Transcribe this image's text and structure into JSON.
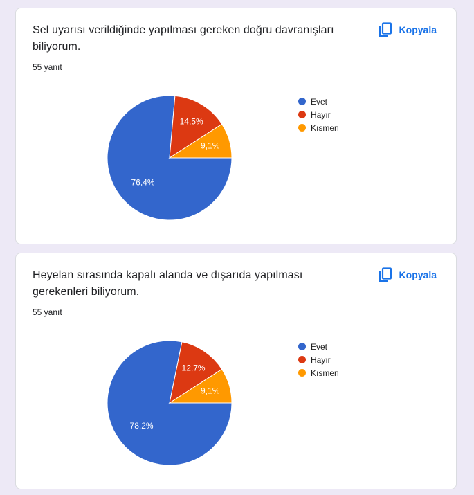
{
  "colors": {
    "background": "#ede9f6",
    "accent": "#1a73e8",
    "evet": "#3366cc",
    "hayir": "#dc3912",
    "kismen": "#ff9900"
  },
  "cards": [
    {
      "title": "Sel uyarısı verildiğinde yapılması gereken doğru davranışları biliyorum.",
      "copy_label": "Kopyala",
      "response_count": "55 yanıt",
      "legend": [
        "Evet",
        "Hayır",
        "Kısmen"
      ],
      "slice_labels": [
        "76,4%",
        "14,5%",
        "9,1%"
      ]
    },
    {
      "title": "Heyelan sırasında kapalı alanda ve dışarıda yapılması gerekenleri biliyorum.",
      "copy_label": "Kopyala",
      "response_count": "55 yanıt",
      "legend": [
        "Evet",
        "Hayır",
        "Kısmen"
      ],
      "slice_labels": [
        "78,2%",
        "12,7%",
        "9,1%"
      ]
    }
  ],
  "chart_data": [
    {
      "type": "pie",
      "title": "Sel uyarısı verildiğinde yapılması gereken doğru davranışları biliyorum.",
      "subtitle": "55 yanıt",
      "categories": [
        "Evet",
        "Hayır",
        "Kısmen"
      ],
      "values": [
        76.4,
        14.5,
        9.1
      ],
      "colors": [
        "#3366cc",
        "#dc3912",
        "#ff9900"
      ],
      "legend_position": "right"
    },
    {
      "type": "pie",
      "title": "Heyelan sırasında kapalı alanda ve dışarıda yapılması gerekenleri biliyorum.",
      "subtitle": "55 yanıt",
      "categories": [
        "Evet",
        "Hayır",
        "Kısmen"
      ],
      "values": [
        78.2,
        12.7,
        9.1
      ],
      "colors": [
        "#3366cc",
        "#dc3912",
        "#ff9900"
      ],
      "legend_position": "right"
    }
  ]
}
